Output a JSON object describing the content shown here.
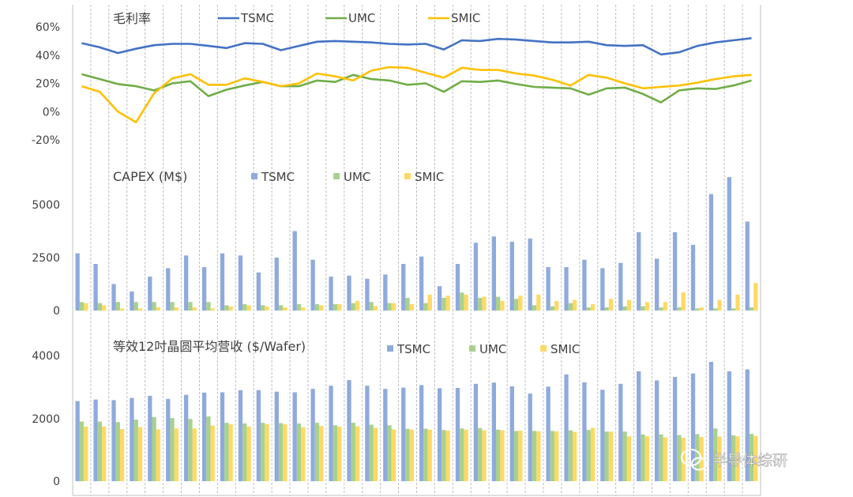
{
  "watermark": {
    "text": "半导体综研",
    "icon": "wechat-icon"
  },
  "colors": {
    "tsmc": "#4472C4",
    "umc": "#70AD47",
    "smic": "#FFC000",
    "tsmc_bar": "#8FAADC",
    "umc_bar": "#A9D18E",
    "smic_bar": "#FFD966"
  },
  "chart_data": [
    {
      "type": "line",
      "title": "毛利率",
      "y_ticks": [
        "60%",
        "40%",
        "20%",
        "0%",
        "-20%"
      ],
      "ylim": [
        -20,
        60
      ],
      "series": [
        {
          "name": "TSMC",
          "values": [
            48.5,
            45.5,
            41.5,
            44.5,
            47,
            48,
            48,
            46.5,
            45,
            48.5,
            48,
            43.5,
            46.5,
            49.5,
            50,
            49.5,
            49,
            48,
            47.5,
            48,
            44,
            50.5,
            50,
            51.5,
            51,
            50,
            49,
            49,
            49.5,
            47,
            46.5,
            47,
            40.5,
            42,
            46.5,
            49,
            50.5,
            52
          ]
        },
        {
          "name": "UMC",
          "values": [
            26.5,
            23,
            19.5,
            18,
            15,
            20,
            21.5,
            11,
            15.5,
            18.5,
            21,
            18,
            18,
            22,
            21,
            26,
            23,
            22,
            19,
            20,
            14,
            21.5,
            21,
            22,
            19.5,
            17.5,
            17,
            16.5,
            12,
            16.5,
            17,
            12.5,
            6.5,
            15,
            16.5,
            16,
            18.5,
            22
          ]
        },
        {
          "name": "SMIC",
          "values": [
            18,
            14,
            0,
            -7.5,
            13,
            23.5,
            26.5,
            19,
            19,
            23.5,
            21,
            18,
            20,
            27,
            25,
            22,
            29,
            31.5,
            31,
            27.5,
            24,
            31,
            29.5,
            29.5,
            27,
            25.5,
            22.5,
            18.5,
            26,
            24,
            20,
            16.5,
            17.5,
            18.5,
            20.5,
            23,
            25,
            26
          ]
        }
      ]
    },
    {
      "type": "bar",
      "title": "CAPEX (M$)",
      "y_ticks": [
        "5000",
        "2500",
        "0"
      ],
      "ylim": [
        0,
        6500
      ],
      "series": [
        {
          "name": "TSMC",
          "values": [
            2700,
            2200,
            1250,
            900,
            1600,
            2000,
            2600,
            2050,
            2700,
            2600,
            1800,
            2500,
            3750,
            2400,
            1600,
            1650,
            1500,
            1700,
            2200,
            2550,
            1150,
            2200,
            3200,
            3500,
            3250,
            3400,
            2050,
            2050,
            2400,
            2000,
            2250,
            3700,
            2450,
            3700,
            3100,
            5500,
            6300,
            4200
          ]
        },
        {
          "name": "UMC",
          "values": [
            400,
            350,
            400,
            400,
            400,
            400,
            400,
            400,
            250,
            300,
            250,
            250,
            300,
            300,
            300,
            350,
            400,
            350,
            600,
            350,
            600,
            850,
            600,
            650,
            550,
            250,
            200,
            350,
            150,
            150,
            200,
            200,
            150,
            150,
            100,
            100,
            100,
            150
          ]
        },
        {
          "name": "SMIC",
          "values": [
            350,
            250,
            100,
            100,
            150,
            150,
            150,
            100,
            200,
            250,
            200,
            150,
            150,
            250,
            300,
            450,
            200,
            350,
            300,
            750,
            700,
            750,
            650,
            450,
            700,
            750,
            450,
            500,
            300,
            550,
            500,
            400,
            400,
            850,
            150,
            500,
            750,
            1300
          ]
        }
      ]
    },
    {
      "type": "bar",
      "title": "等效12吋晶圆平均营收 ($/Wafer)",
      "y_ticks": [
        "4000",
        "2000",
        "0"
      ],
      "ylim": [
        0,
        4400
      ],
      "series": [
        {
          "name": "TSMC",
          "values": [
            2550,
            2600,
            2580,
            2650,
            2720,
            2620,
            2750,
            2820,
            2830,
            2900,
            2900,
            2850,
            2830,
            2940,
            3040,
            3220,
            3040,
            2940,
            2980,
            3060,
            2960,
            2970,
            3100,
            3140,
            3020,
            2790,
            3010,
            3400,
            3150,
            2910,
            3100,
            3500,
            3210,
            3320,
            3430,
            3800,
            3500,
            3560
          ]
        },
        {
          "name": "UMC",
          "values": [
            1900,
            1900,
            1880,
            1960,
            2040,
            2010,
            1980,
            2060,
            1860,
            1840,
            1860,
            1850,
            1840,
            1860,
            1780,
            1860,
            1800,
            1780,
            1670,
            1670,
            1630,
            1680,
            1690,
            1640,
            1600,
            1600,
            1600,
            1620,
            1630,
            1580,
            1580,
            1490,
            1490,
            1470,
            1500,
            1680,
            1460,
            1510
          ]
        },
        {
          "name": "SMIC",
          "values": [
            1740,
            1740,
            1660,
            1720,
            1650,
            1680,
            1680,
            1770,
            1810,
            1740,
            1820,
            1810,
            1720,
            1760,
            1740,
            1750,
            1700,
            1650,
            1640,
            1640,
            1610,
            1640,
            1620,
            1620,
            1610,
            1590,
            1590,
            1570,
            1700,
            1580,
            1430,
            1430,
            1400,
            1380,
            1410,
            1420,
            1430,
            1440
          ]
        }
      ]
    }
  ]
}
